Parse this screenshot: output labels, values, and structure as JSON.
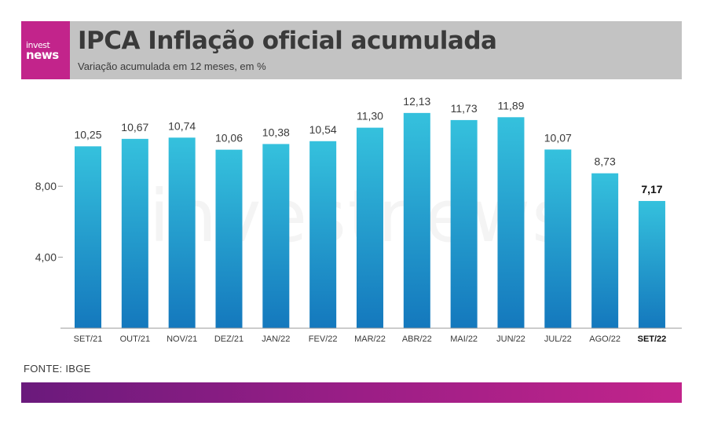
{
  "brand": {
    "logo_line1": "invest",
    "logo_line2": "news",
    "accent_color": "#c2248b",
    "bar_top_color": "#35c1dd",
    "bar_bottom_color": "#1478bd"
  },
  "header": {
    "title": "IPCA Inflação oficial acumulada",
    "subtitle": "Variação acumulada em 12 meses, em %"
  },
  "watermark": "investnews",
  "source": "FONTE: IBGE",
  "chart_data": {
    "type": "bar",
    "categories": [
      "SET/21",
      "OUT/21",
      "NOV/21",
      "DEZ/21",
      "JAN/22",
      "FEV/22",
      "MAR/22",
      "ABR/22",
      "MAI/22",
      "JUN/22",
      "JUL/22",
      "AGO/22",
      "SET/22"
    ],
    "values": [
      10.25,
      10.67,
      10.74,
      10.06,
      10.38,
      10.54,
      11.3,
      12.13,
      11.73,
      11.89,
      10.07,
      8.73,
      7.17
    ],
    "value_labels": [
      "10,25",
      "10,67",
      "10,74",
      "10,06",
      "10,38",
      "10,54",
      "11,30",
      "12,13",
      "11,73",
      "11,89",
      "10,07",
      "8,73",
      "7,17"
    ],
    "highlight_index": 12,
    "yticks": [
      4,
      8
    ],
    "ytick_labels": [
      "4,00",
      "8,00"
    ],
    "ylim": [
      0,
      12.5
    ],
    "grid": false,
    "legend": "none"
  }
}
